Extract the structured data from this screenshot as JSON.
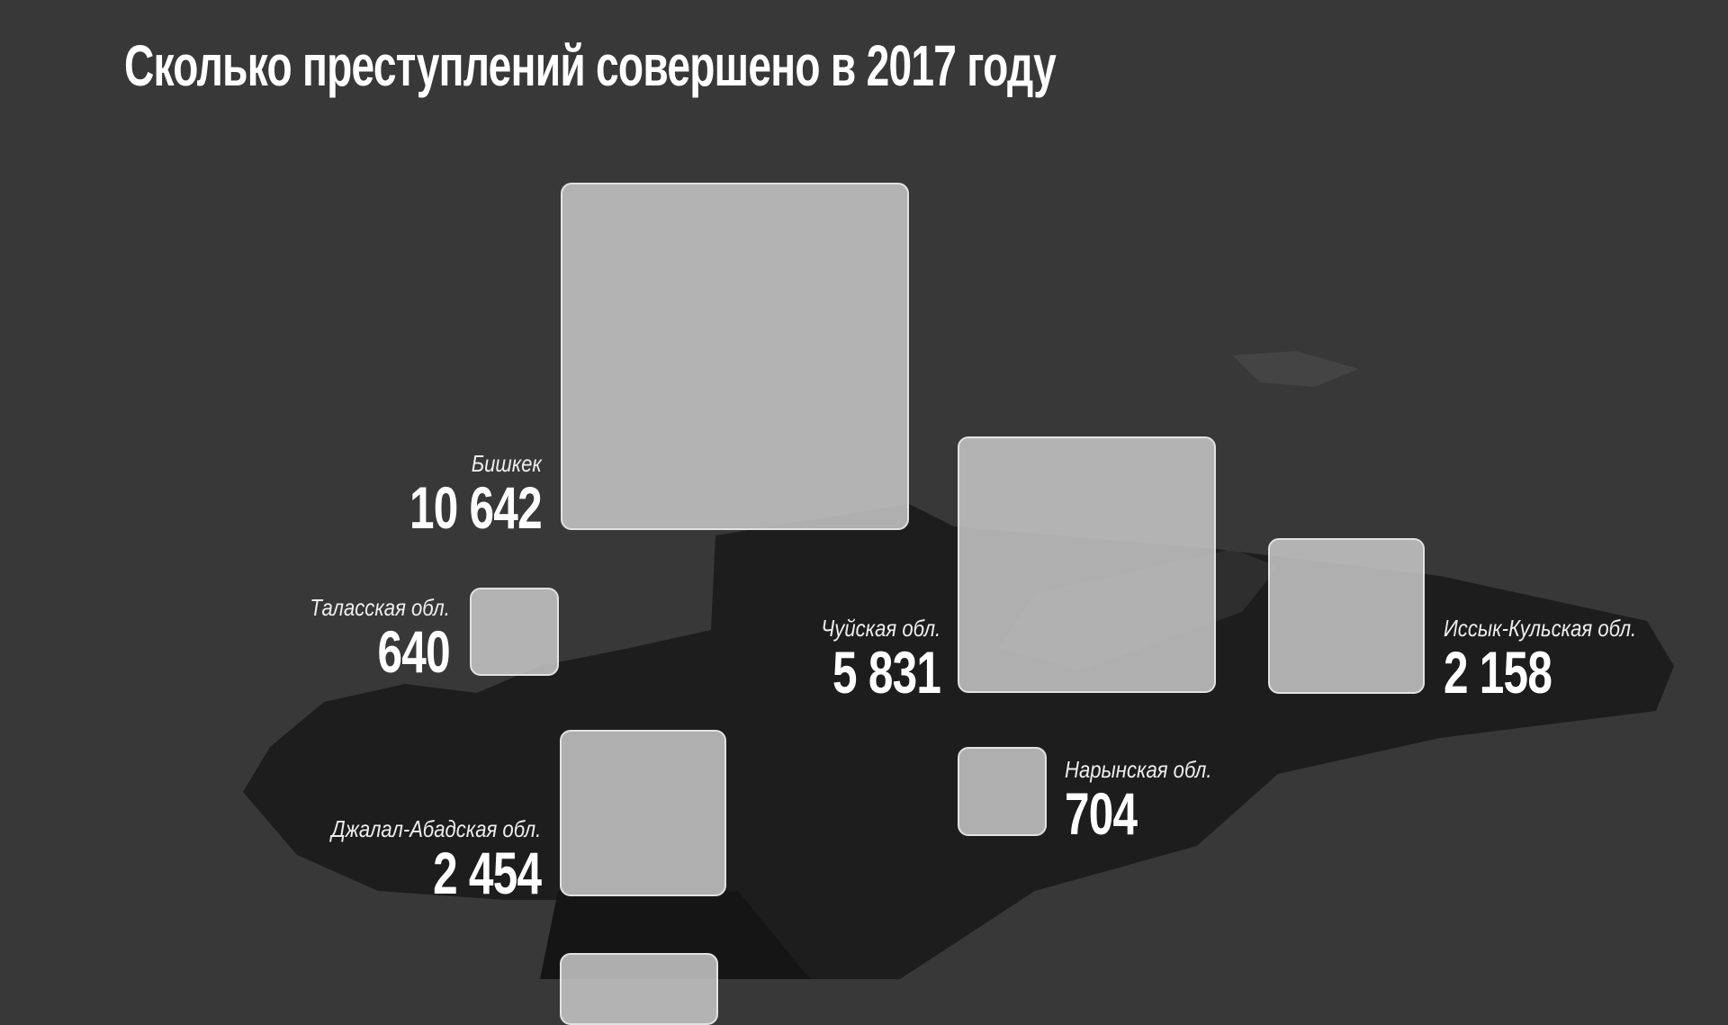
{
  "title": "Сколько преступлений совершено в 2017 году",
  "colors": {
    "background": "#383838",
    "map_region": "#1c1c1c",
    "box": "#c4c4c4"
  },
  "regions": [
    {
      "name": "Бишкек",
      "value": "10 642"
    },
    {
      "name": "Таласская обл.",
      "value": "640"
    },
    {
      "name": "Чуйская обл.",
      "value": "5 831"
    },
    {
      "name": "Иссык-Кульская обл.",
      "value": "2 158"
    },
    {
      "name": "Нарынская обл.",
      "value": "704"
    },
    {
      "name": "Джалал-Абадская обл.",
      "value": "2 454"
    }
  ]
}
